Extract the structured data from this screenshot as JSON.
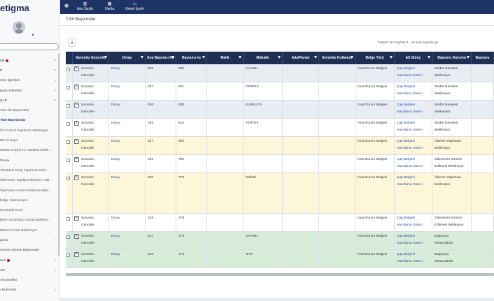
{
  "app": {
    "logo_text": "etigma"
  },
  "topbar": {
    "items": [
      {
        "label": "Ana Sayfa",
        "icon": "bar-chart-icon"
      },
      {
        "label": "Harita",
        "icon": "map-icon"
      },
      {
        "label": "Genel İçerik",
        "icon": "monitor-icon"
      }
    ]
  },
  "breadcrumb": {
    "title": "Tüm Başvurular"
  },
  "paging": {
    "text": "Toplam 112 kayıttan 1 - 10 arası kayıtlar gö"
  },
  "sidebar": {
    "items": [
      {
        "label": "SE",
        "level": "l0",
        "dot": true,
        "arrow": "^"
      },
      {
        "label": "P",
        "level": "l0",
        "arrow": "^"
      },
      {
        "label": "rmin İşlemleri",
        "level": "l1",
        "arrow": ">"
      },
      {
        "label": "şvuru İşlemleri",
        "level": "l1",
        "arrow": ">"
      },
      {
        "label": "ÇAP",
        "level": "l0",
        "arrow": "^"
      },
      {
        "label": "Tüm Ön Başvurular",
        "level": "l2"
      },
      {
        "label": "Tüm Başvurular",
        "level": "l2",
        "active": true
      },
      {
        "label": "Ön Kontrol Yapılması Bekleniyor",
        "level": "l2"
      },
      {
        "label": "EBYS Kayıt",
        "level": "l2"
      },
      {
        "label": "Müdür Kontrol ve Havalesi Bekle...",
        "level": "l2"
      },
      {
        "label": "Planla",
        "level": "l2"
      },
      {
        "label": "Tahakkuk Girişi Yapılması Bekl...",
        "level": "l2"
      },
      {
        "label": "Ödemenin Yapılip Dekontun Yükl...",
        "level": "l2"
      },
      {
        "label": "Ödemenin Kontrol Edilmesi Bekl...",
        "level": "l2"
      },
      {
        "label": "Belge Hazırlanıyor",
        "level": "l2"
      },
      {
        "label": "Kontrolde İmza",
        "level": "l2"
      },
      {
        "label": "Birim Sorumlusu İmzası Bekleni...",
        "level": "l2"
      },
      {
        "label": "Müdür İmzası Bekleniyor",
        "level": "l2"
      },
      {
        "label": "porlar",
        "level": "l1",
        "arrow": ">"
      },
      {
        "label": "orumlu Olunan Başvurular",
        "level": "l1"
      },
      {
        "label": "mal",
        "level": "l0",
        "dot": true,
        "arrow": ">"
      },
      {
        "label": "AN",
        "level": "l0",
        "arrow": ">"
      },
      {
        "label": "ı Kontrolleri",
        "level": "l1"
      },
      {
        "label": "ı Numarası",
        "level": "l1",
        "arrow": ">"
      }
    ]
  },
  "table": {
    "columns": [
      {
        "label": "",
        "filter": false
      },
      {
        "label": "Sorumlu Güncelle",
        "filter": true
      },
      {
        "label": "Detay",
        "filter": true
      },
      {
        "label": "Ana Başvuru No",
        "filter": true
      },
      {
        "label": "Başvuru №",
        "filter": true
      },
      {
        "label": "Malik",
        "filter": true
      },
      {
        "label": "Mahalle",
        "filter": true
      },
      {
        "label": "Ada/Parsel",
        "filter": true
      },
      {
        "label": "Sorumlu Kullanıcı",
        "filter": true
      },
      {
        "label": "Belge Türü",
        "filter": true
      },
      {
        "label": "Alt Süreç",
        "filter": true
      },
      {
        "label": "Başvuru Durumu",
        "filter": true
      },
      {
        "label": "Başvuru",
        "filter": false
      }
    ],
    "rows": [
      {
        "bg": "#e8edf4",
        "h": 26,
        "update_1": "Sorumlu",
        "update_2": "Güncelle",
        "detay": "Detay",
        "ana_no": "339",
        "basvuru_no": "823",
        "mahalle": "İLHANLI",
        "belge": "İmar Durum Belgesi",
        "surec_1": "Çap Belgesi",
        "surec_2": "Hazırlama Süreci",
        "durum_1": "Müdür Havalesi",
        "durum_2": "Bekleniyor"
      },
      {
        "bg": "#ffffff",
        "h": 26,
        "update_1": "Sorumlu",
        "update_2": "Güncelle",
        "detay": "Detay",
        "ana_no": "337",
        "basvuru_no": "821",
        "mahalle": "FERTEK",
        "belge": "İmar Durum Belgesi",
        "surec_1": "Çap Belgesi",
        "surec_2": "Hazırlama Süreci",
        "durum_1": "Müdür Havalesi",
        "durum_2": "Bekleniyor"
      },
      {
        "bg": "#e8edf4",
        "h": 26,
        "update_1": "Sorumlu",
        "update_2": "Güncelle",
        "detay": "Detay",
        "ana_no": "336",
        "basvuru_no": "820",
        "mahalle": "KUMLUCA",
        "belge": "İmar Durum Belgesi",
        "surec_1": "Çap Belgesi",
        "surec_2": "Hazırlama Süreci",
        "durum_1": "Müdür Havalesi",
        "durum_2": "Bekleniyor"
      },
      {
        "bg": "#ffffff",
        "h": 26,
        "update_1": "Sorumlu",
        "update_2": "Güncelle",
        "detay": "Detay",
        "ana_no": "329",
        "basvuru_no": "814",
        "mahalle": "FERTEK",
        "belge": "İmar Durum Belgesi",
        "surec_1": "Çap Belgesi",
        "surec_2": "Hazırlama Süreci",
        "durum_1": "Müdür Havalesi",
        "durum_2": "Bekleniyor"
      },
      {
        "bg": "#fdf6d8",
        "h": 26,
        "update_1": "Sorumlu",
        "update_2": "Güncelle",
        "detay": "Detay",
        "ana_no": "327",
        "basvuru_no": "803",
        "mahalle": "",
        "belge": "İmar Durum Belgesi",
        "surec_1": "Çap Belgesi",
        "surec_2": "Hazırlama Süreci",
        "durum_1": "Ödeme Yapılması",
        "durum_2": "Bekleniyor"
      },
      {
        "bg": "#ffffff",
        "h": 26,
        "update_1": "Sorumlu",
        "update_2": "Güncelle",
        "detay": "Detay",
        "ana_no": "325",
        "basvuru_no": "790",
        "mahalle": "",
        "belge": "İmar Durum Belgesi",
        "surec_1": "Çap Belgesi",
        "surec_2": "Hazırlama Süreci",
        "durum_1": "Ödemenin Kontrol",
        "durum_2": "Edilmesi Bekleniyor"
      },
      {
        "bg": "#fdf6d8",
        "h": 58,
        "update_1": "Sorumlu",
        "update_2": "Güncelle",
        "detay": "Detay",
        "ana_no": "320",
        "basvuru_no": "779",
        "mahalle": "İNÖNÜ",
        "belge": "İmar Durum Belgesi",
        "surec_1": "Çap Belgesi",
        "surec_2": "Hazırlama Süreci",
        "durum_1": "Ödeme Yapılması",
        "durum_2": "Bekleniyor"
      },
      {
        "bg": "#ffffff",
        "h": 26,
        "update_1": "Sorumlu",
        "update_2": "Güncelle",
        "detay": "Detay",
        "ana_no": "319",
        "basvuru_no": "778",
        "mahalle": "",
        "belge": "İmar Durum Belgesi",
        "surec_1": "Çap Belgesi",
        "surec_2": "Hazırlama Süreci",
        "durum_1": "Ödemenin Kontrol",
        "durum_2": "Edilmesi Bekleniyor"
      },
      {
        "bg": "#d7edd9",
        "h": 26,
        "update_1": "Sorumlu",
        "update_2": "Güncelle",
        "detay": "Detay",
        "ana_no": "317",
        "basvuru_no": "774",
        "mahalle": "İLHANLI",
        "belge": "İmar Durum Belgesi",
        "surec_1": "Çap Belgesi",
        "surec_2": "Hazırlama Süreci",
        "durum_1": "Başarıyla",
        "durum_2": "Tamamlandı"
      },
      {
        "bg": "#d7edd9",
        "h": 26,
        "update_1": "Sorumlu",
        "update_2": "Güncelle",
        "detay": "Detay",
        "ana_no": "315",
        "basvuru_no": "774",
        "mahalle": "NAR",
        "belge": "İmar Durum Belgesi",
        "surec_1": "Çap Belgesi",
        "surec_2": "Hazırlama Süreci",
        "durum_1": "Başarıyla",
        "durum_2": "Tamamlandı"
      }
    ]
  }
}
